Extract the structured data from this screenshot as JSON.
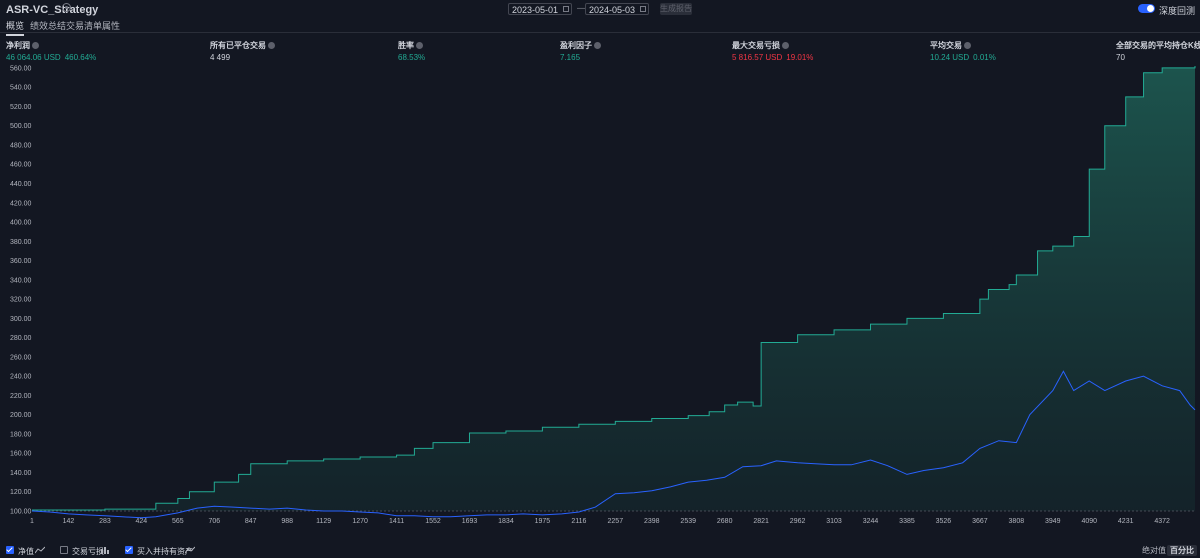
{
  "header": {
    "strategy_title": "ASR-VC_Strategy",
    "date_from": "2023-05-01",
    "date_separator": "—",
    "date_to": "2024-05-03",
    "generate_label": "生成报告",
    "deep_backtest_label": "深度回测",
    "deep_backtest_on": true
  },
  "tabs": [
    {
      "label": "概览",
      "active": true
    },
    {
      "label": "绩效总结",
      "active": false
    },
    {
      "label": "交易清单",
      "active": false
    },
    {
      "label": "属性",
      "active": false
    }
  ],
  "metrics": {
    "net_profit": {
      "label": "净利润",
      "value": "46 064.06 USD",
      "sub": "460.64%"
    },
    "closed_trades": {
      "label": "所有已平仓交易",
      "value": "4 499"
    },
    "win_rate": {
      "label": "胜率",
      "value": "68.53%"
    },
    "profit_factor": {
      "label": "盈利因子",
      "value": "7.165"
    },
    "max_drawdown": {
      "label": "最大交易亏损",
      "value": "5 816.57 USD",
      "sub": "19.01%"
    },
    "avg_trade": {
      "label": "平均交易",
      "value": "10.24 USD",
      "sub": "0.01%"
    },
    "avg_bars": {
      "label": "全部交易的平均持仓K线数",
      "value": "70"
    }
  },
  "chart_data": {
    "type": "area",
    "y_axis_format": "percent",
    "y_ticks": [
      "560.00",
      "540.00",
      "520.00",
      "500.00",
      "480.00",
      "460.00",
      "440.00",
      "420.00",
      "400.00",
      "380.00",
      "360.00",
      "340.00",
      "320.00",
      "300.00",
      "280.00",
      "260.00",
      "240.00",
      "220.00",
      "200.00",
      "180.00",
      "160.00",
      "140.00",
      "120.00",
      "100.00"
    ],
    "ylim": [
      100,
      562
    ],
    "x_ticks": [
      "1",
      "142",
      "283",
      "424",
      "565",
      "706",
      "847",
      "988",
      "1129",
      "1270",
      "1411",
      "1552",
      "1693",
      "1834",
      "1975",
      "2116",
      "2257",
      "2398",
      "2539",
      "2680",
      "2821",
      "2962",
      "3103",
      "3244",
      "3385",
      "3526",
      "3667",
      "3808",
      "3949",
      "4090",
      "4231",
      "4372"
    ],
    "xlim": [
      1,
      4499
    ],
    "grid": false,
    "series": [
      {
        "name": "净值",
        "color": "#22ab94",
        "x": [
          1,
          142,
          283,
          424,
          480,
          565,
          610,
          706,
          800,
          847,
          988,
          1129,
          1270,
          1411,
          1480,
          1552,
          1693,
          1834,
          1975,
          2116,
          2257,
          2398,
          2539,
          2620,
          2680,
          2730,
          2790,
          2821,
          2962,
          3103,
          3244,
          3385,
          3526,
          3600,
          3667,
          3700,
          3780,
          3808,
          3890,
          3949,
          4030,
          4090,
          4150,
          4231,
          4300,
          4372,
          4499
        ],
        "y": [
          101,
          101,
          102,
          102,
          108,
          113,
          120,
          130,
          138,
          149,
          152,
          154,
          156,
          158,
          165,
          171,
          181,
          183,
          187,
          190,
          193,
          196,
          199,
          203,
          210,
          213,
          209,
          275,
          283,
          288,
          294,
          300,
          305,
          305,
          320,
          330,
          335,
          345,
          370,
          375,
          385,
          455,
          500,
          530,
          555,
          560,
          562
        ]
      },
      {
        "name": "买入并持有资产",
        "color": "#2962ff",
        "x": [
          1,
          70,
          142,
          210,
          283,
          350,
          424,
          480,
          565,
          640,
          706,
          780,
          847,
          920,
          988,
          1060,
          1129,
          1200,
          1270,
          1340,
          1411,
          1480,
          1552,
          1620,
          1693,
          1760,
          1834,
          1900,
          1975,
          2050,
          2116,
          2180,
          2257,
          2330,
          2398,
          2470,
          2539,
          2610,
          2680,
          2750,
          2821,
          2880,
          2962,
          3030,
          3103,
          3170,
          3244,
          3310,
          3385,
          3450,
          3526,
          3600,
          3667,
          3740,
          3808,
          3860,
          3949,
          3990,
          4030,
          4090,
          4150,
          4231,
          4300,
          4372,
          4440,
          4480,
          4499
        ],
        "y": [
          100,
          99,
          97,
          96,
          95,
          94,
          93,
          94,
          98,
          103,
          105,
          104,
          103,
          102,
          103,
          101,
          100,
          100,
          99,
          98,
          95,
          95,
          94,
          94,
          95,
          96,
          96,
          97,
          96,
          97,
          99,
          104,
          118,
          119,
          121,
          125,
          130,
          132,
          135,
          146,
          147,
          152,
          150,
          149,
          148,
          148,
          153,
          147,
          138,
          142,
          145,
          150,
          165,
          173,
          171,
          200,
          225,
          245,
          225,
          235,
          225,
          235,
          240,
          230,
          225,
          210,
          205
        ]
      }
    ]
  },
  "legend": {
    "items": [
      {
        "label": "净值",
        "checked": true
      },
      {
        "label": "交易亏损",
        "checked": false
      },
      {
        "label": "买入并持有资产",
        "checked": true
      }
    ],
    "mode_absolute": "绝对值",
    "mode_percent": "百分比"
  }
}
